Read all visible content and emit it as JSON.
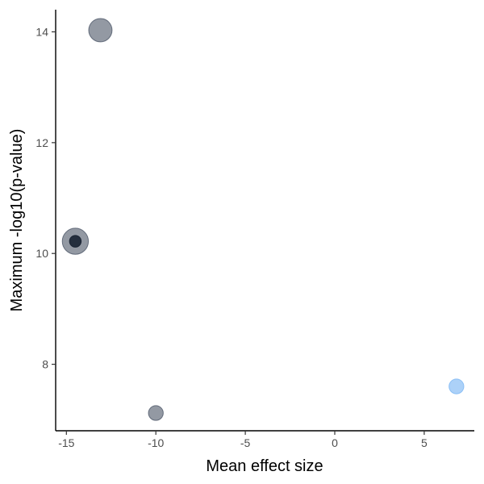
{
  "chart_data": {
    "type": "scatter",
    "title": "",
    "xlabel": "Mean effect size",
    "ylabel": "Maximum -log10(p-value)",
    "xlim": [
      -15.6,
      7.8
    ],
    "ylim": [
      6.8,
      14.4
    ],
    "xticks": [
      -15,
      -10,
      -5,
      0,
      5
    ],
    "xtick_labels": [
      "-15",
      "-10",
      "-5",
      "0",
      "5"
    ],
    "yticks": [
      8,
      10,
      12,
      14
    ],
    "ytick_labels": [
      "8",
      "10",
      "12",
      "14"
    ],
    "grid": false,
    "legend": "none",
    "points": [
      {
        "x": -13.1,
        "y": 14.03,
        "size": 4,
        "color": "#4b5566",
        "opacity": 0.6
      },
      {
        "x": -14.5,
        "y": 10.22,
        "size": 5,
        "color": "#4b5566",
        "opacity": 0.6
      },
      {
        "x": -14.5,
        "y": 10.22,
        "size": 1,
        "color": "#1a2433",
        "opacity": 0.9
      },
      {
        "x": -10.0,
        "y": 7.12,
        "size": 1.6,
        "color": "#4b5566",
        "opacity": 0.6
      },
      {
        "x": 6.8,
        "y": 7.6,
        "size": 1.6,
        "color": "#7fb8f5",
        "opacity": 0.65
      }
    ]
  }
}
